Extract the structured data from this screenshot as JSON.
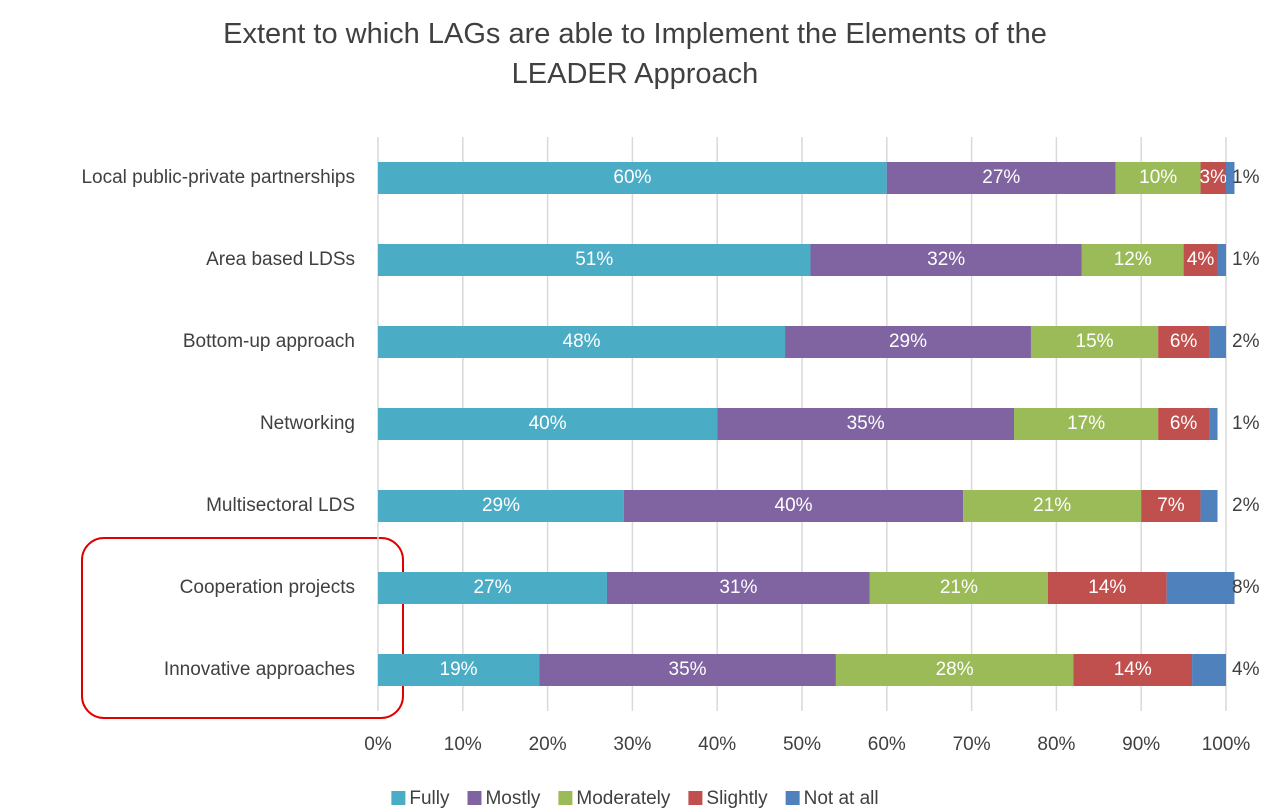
{
  "chart_data": {
    "type": "stacked_bar_horizontal",
    "title": "Extent to which LAGs are able to Implement the Elements of the LEADER Approach",
    "categories": [
      "Local public-private partnerships",
      "Area based LDSs",
      "Bottom-up approach",
      "Networking",
      "Multisectoral LDS",
      "Cooperation projects",
      "Innovative approaches"
    ],
    "series": [
      {
        "name": "Fully",
        "color": "#4bacc6",
        "values": [
          60,
          51,
          48,
          40,
          29,
          27,
          19
        ],
        "value_labels": [
          "60%",
          "51%",
          "48%",
          "40%",
          "29%",
          "27%",
          "19%"
        ]
      },
      {
        "name": "Mostly",
        "color": "#8064a2",
        "values": [
          27,
          32,
          29,
          35,
          40,
          31,
          35
        ],
        "value_labels": [
          "27%",
          "32%",
          "29%",
          "35%",
          "40%",
          "31%",
          "35%"
        ]
      },
      {
        "name": "Moderately",
        "color": "#9bbb59",
        "values": [
          10,
          12,
          15,
          17,
          21,
          21,
          28
        ],
        "value_labels": [
          "10%",
          "12%",
          "15%",
          "17%",
          "21%",
          "21%",
          "28%"
        ]
      },
      {
        "name": "Slightly",
        "color": "#c0504d",
        "values": [
          3,
          4,
          6,
          6,
          7,
          14,
          14
        ],
        "value_labels": [
          "3%",
          "4%",
          "6%",
          "6%",
          "7%",
          "14%",
          "14%"
        ]
      },
      {
        "name": "Not at all",
        "color": "#4f81bd",
        "values": [
          1,
          1,
          2,
          1,
          2,
          8,
          4
        ],
        "value_labels": [
          "1%",
          "1%",
          "2%",
          "1%",
          "2%",
          "8%",
          "4%"
        ]
      }
    ],
    "xlim": [
      0,
      100
    ],
    "xticks": [
      {
        "value": 0,
        "label": "0%"
      },
      {
        "value": 10,
        "label": "10%"
      },
      {
        "value": 20,
        "label": "20%"
      },
      {
        "value": 30,
        "label": "30%"
      },
      {
        "value": 40,
        "label": "40%"
      },
      {
        "value": 50,
        "label": "50%"
      },
      {
        "value": 60,
        "label": "60%"
      },
      {
        "value": 70,
        "label": "70%"
      },
      {
        "value": 80,
        "label": "80%"
      },
      {
        "value": 90,
        "label": "90%"
      },
      {
        "value": 100,
        "label": "100%"
      }
    ],
    "grid": true,
    "legend": "bottom"
  }
}
